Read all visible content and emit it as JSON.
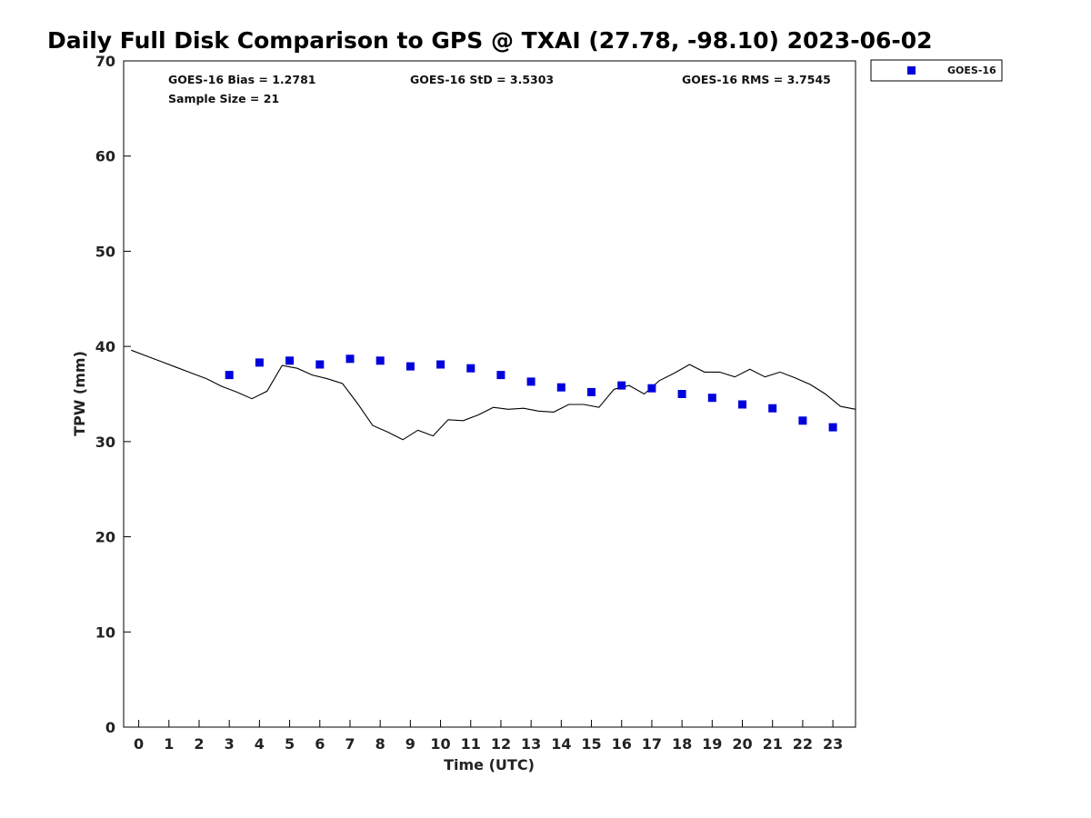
{
  "colors": {
    "series_marker": "#0000dd",
    "gps_line": "#000000",
    "axes": "#000000"
  },
  "chart_data": {
    "type": "scatter",
    "title": "Daily Full Disk Comparison to GPS @ TXAI (27.78, -98.10) 2023-06-02",
    "xlabel": "Time (UTC)",
    "ylabel": "TPW (mm)",
    "xlim": [
      -0.5,
      23.75
    ],
    "ylim": [
      0,
      70
    ],
    "x_ticks": [
      0,
      1,
      2,
      3,
      4,
      5,
      6,
      7,
      8,
      9,
      10,
      11,
      12,
      13,
      14,
      15,
      16,
      17,
      18,
      19,
      20,
      21,
      22,
      23
    ],
    "y_ticks": [
      0,
      10,
      20,
      30,
      40,
      50,
      60,
      70
    ],
    "grid": false,
    "legend_position": "top-right",
    "stats": [
      {
        "label": "GOES-16 Bias = 1.2781"
      },
      {
        "label": "Sample Size = 21"
      },
      {
        "label": "GOES-16 StD = 3.5303"
      },
      {
        "label": "GOES-16 RMS = 3.7545"
      }
    ],
    "series": [
      {
        "name": "GOES-16",
        "kind": "marker",
        "marker": "square",
        "x": [
          3,
          4,
          5,
          6,
          7,
          8,
          9,
          10,
          11,
          12,
          13,
          14,
          15,
          16,
          17,
          18,
          19,
          20,
          21,
          22,
          23
        ],
        "y": [
          37.0,
          38.3,
          38.5,
          38.1,
          38.7,
          38.5,
          37.9,
          38.1,
          37.7,
          37.0,
          36.3,
          35.7,
          35.2,
          35.9,
          35.6,
          35.0,
          34.6,
          33.9,
          33.5,
          32.2,
          31.5
        ]
      },
      {
        "kind": "line",
        "x": [
          -0.25,
          0.25,
          0.75,
          1.25,
          1.75,
          2.25,
          2.75,
          3.25,
          3.75,
          4.25,
          4.75,
          5.25,
          5.75,
          6.25,
          6.75,
          7.25,
          7.75,
          8.25,
          8.75,
          9.25,
          9.75,
          10.25,
          10.75,
          11.25,
          11.75,
          12.25,
          12.75,
          13.25,
          13.75,
          14.25,
          14.75,
          15.25,
          15.75,
          16.25,
          16.75,
          17.25,
          17.75,
          18.25,
          18.75,
          19.25,
          19.75,
          20.25,
          20.75,
          21.25,
          21.75,
          22.25,
          22.75,
          23.25,
          23.75
        ],
        "y": [
          39.6,
          39.0,
          38.4,
          37.8,
          37.2,
          36.6,
          35.8,
          35.2,
          34.5,
          35.3,
          38.0,
          37.7,
          37.0,
          36.6,
          36.1,
          34.0,
          31.7,
          31.0,
          30.2,
          31.2,
          30.6,
          32.3,
          32.2,
          32.8,
          33.6,
          33.4,
          33.5,
          33.2,
          33.1,
          33.9,
          33.9,
          33.6,
          35.5,
          35.9,
          35.0,
          36.4,
          37.2,
          38.1,
          37.3,
          37.3,
          36.8,
          37.6,
          36.8,
          37.3,
          36.7,
          36.0,
          35.0,
          33.7,
          33.4
        ]
      }
    ]
  }
}
